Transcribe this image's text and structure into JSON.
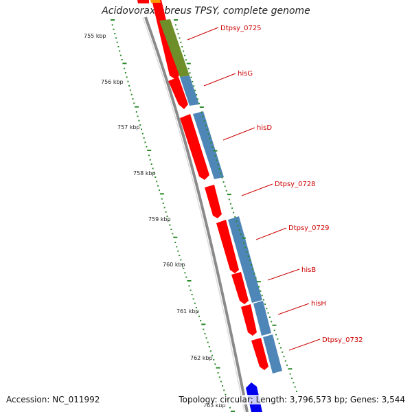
{
  "title": "Acidovorax ebreus TPSY, complete genome",
  "footer": {
    "accession": "Accession: NC_011992",
    "summary": "Topology: circular; Length: 3,796,573 bp; Genes: 3,544"
  },
  "colors": {
    "backbone": "#8a8a8a",
    "cds": "#ff0000",
    "gene_strand": "#4f86b8",
    "cog_green": "#6e8e2a",
    "tick_green": "#2a8a2a",
    "label_red": "#cc0000",
    "orange_gene": "#ff9900",
    "blue_gene": "#0000ee"
  },
  "kbp_labels": [
    "755 kbp",
    "756 kbp",
    "757 kbp",
    "758 kbp",
    "759 kbp",
    "760 kbp",
    "761 kbp",
    "762 kbp",
    "763 kbp"
  ],
  "genes": [
    {
      "label": "Dtpsy_0725"
    },
    {
      "label": "hisG"
    },
    {
      "label": "hisD"
    },
    {
      "label": "Dtpsy_0728"
    },
    {
      "label": "Dtpsy_0729"
    },
    {
      "label": "hisB"
    },
    {
      "label": "hisH"
    },
    {
      "label": "Dtpsy_0732"
    }
  ]
}
